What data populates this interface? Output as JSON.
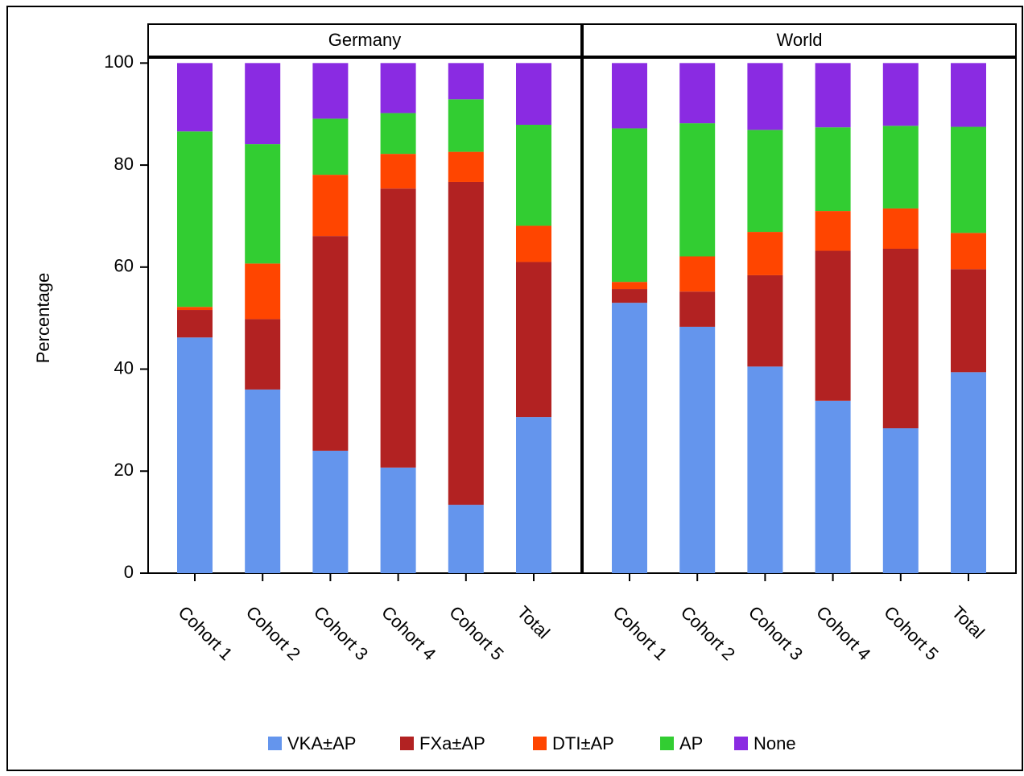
{
  "chart_data": [
    {
      "type": "bar",
      "stacked": true,
      "title": "Germany",
      "y_label": "Percentage",
      "categories": [
        "Cohort 1",
        "Cohort 2",
        "Cohort 3",
        "Cohort 4",
        "Cohort 5",
        "Total"
      ],
      "series": [
        {
          "name": "VKA±AP",
          "color": "#6495ed",
          "values": [
            46.2,
            36.0,
            24.0,
            20.7,
            13.4,
            30.6
          ]
        },
        {
          "name": "FXa±AP",
          "color": "#b22222",
          "values": [
            5.4,
            13.8,
            42.1,
            54.7,
            63.3,
            30.4
          ]
        },
        {
          "name": "DTI±AP",
          "color": "#ff4500",
          "values": [
            0.6,
            10.9,
            12.0,
            6.8,
            5.9,
            7.1
          ]
        },
        {
          "name": "AP",
          "color": "#32cd32",
          "values": [
            34.4,
            23.4,
            11.0,
            8.0,
            10.3,
            19.8
          ]
        },
        {
          "name": "None",
          "color": "#8a2be2",
          "values": [
            13.4,
            15.9,
            10.9,
            9.8,
            7.1,
            12.1
          ]
        }
      ],
      "ylim": [
        0,
        101
      ],
      "yticks": [
        0,
        20,
        40,
        60,
        80,
        100
      ]
    },
    {
      "type": "bar",
      "stacked": true,
      "title": "World",
      "categories": [
        "Cohort 1",
        "Cohort 2",
        "Cohort 3",
        "Cohort 4",
        "Cohort 5",
        "Total"
      ],
      "series": [
        {
          "color": "#6495ed",
          "values": [
            53.0,
            48.3,
            40.5,
            33.8,
            28.4,
            39.4
          ]
        },
        {
          "color": "#b22222",
          "values": [
            2.7,
            6.9,
            17.9,
            29.4,
            35.2,
            20.2
          ]
        },
        {
          "color": "#ff4500",
          "values": [
            1.4,
            6.9,
            8.5,
            7.8,
            7.9,
            7.1
          ]
        },
        {
          "color": "#32cd32",
          "values": [
            30.1,
            26.1,
            20.0,
            16.4,
            16.2,
            20.8
          ]
        },
        {
          "color": "#8a2be2",
          "values": [
            12.8,
            11.8,
            13.1,
            12.6,
            12.3,
            12.5
          ]
        }
      ],
      "ylim": [
        0,
        101
      ],
      "yticks": [
        0,
        20,
        40,
        60,
        80,
        100
      ]
    }
  ]
}
